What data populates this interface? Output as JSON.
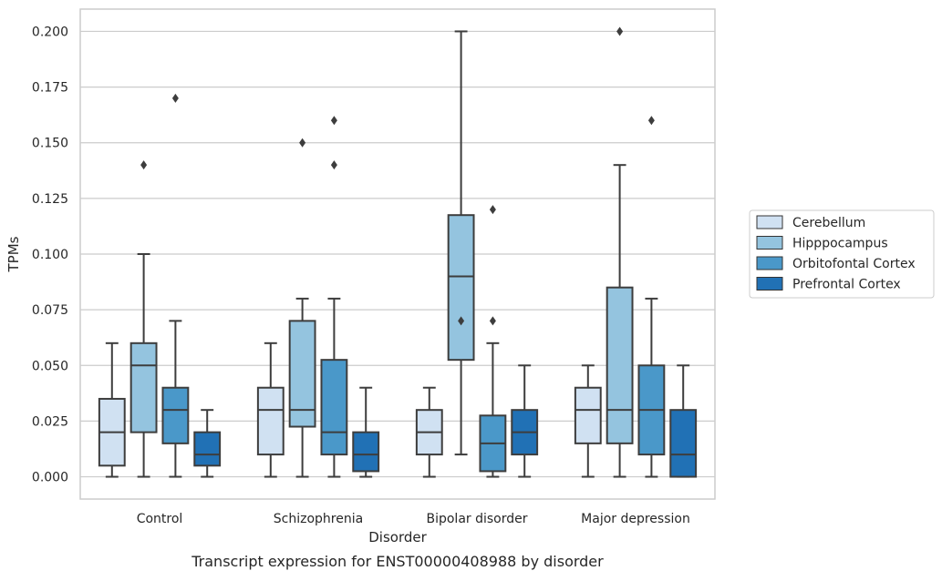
{
  "chart_data": {
    "type": "boxplot",
    "title": "",
    "caption": "Transcript expression for ENST00000408988 by disorder",
    "xlabel": "Disorder",
    "ylabel": "TPMs",
    "ylim": [
      -0.01,
      0.21
    ],
    "yticks": [
      "0.000",
      "0.025",
      "0.050",
      "0.075",
      "0.100",
      "0.125",
      "0.150",
      "0.175",
      "0.200"
    ],
    "ytick_values": [
      0,
      0.025,
      0.05,
      0.075,
      0.1,
      0.125,
      0.15,
      0.175,
      0.2
    ],
    "grid": true,
    "legend_position": "right",
    "categories": [
      "Control",
      "Schizophrenia",
      "Bipolar disorder",
      "Major depression"
    ],
    "series": [
      {
        "name": "Cerebellum",
        "color": "#d0e1f2",
        "boxes": [
          {
            "whisker_low": 0,
            "q1": 0.005,
            "median": 0.02,
            "q3": 0.035,
            "whisker_high": 0.06,
            "outliers": []
          },
          {
            "whisker_low": 0,
            "q1": 0.01,
            "median": 0.03,
            "q3": 0.04,
            "whisker_high": 0.06,
            "outliers": []
          },
          {
            "whisker_low": 0,
            "q1": 0.01,
            "median": 0.02,
            "q3": 0.03,
            "whisker_high": 0.04,
            "outliers": []
          },
          {
            "whisker_low": 0,
            "q1": 0.015,
            "median": 0.03,
            "q3": 0.04,
            "whisker_high": 0.05,
            "outliers": []
          }
        ]
      },
      {
        "name": "Hipppocampus",
        "color": "#94c4df",
        "boxes": [
          {
            "whisker_low": 0,
            "q1": 0.02,
            "median": 0.05,
            "q3": 0.06,
            "whisker_high": 0.1,
            "outliers": [
              0.14
            ]
          },
          {
            "whisker_low": 0,
            "q1": 0.0225,
            "median": 0.03,
            "q3": 0.07,
            "whisker_high": 0.08,
            "outliers": [
              0.15
            ]
          },
          {
            "whisker_low": 0.01,
            "q1": 0.0525,
            "median": 0.09,
            "q3": 0.1175,
            "whisker_high": 0.2,
            "outliers": [
              0.07
            ]
          },
          {
            "whisker_low": 0,
            "q1": 0.015,
            "median": 0.03,
            "q3": 0.085,
            "whisker_high": 0.14,
            "outliers": [
              0.2
            ]
          }
        ]
      },
      {
        "name": "Orbitofontal Cortex",
        "color": "#4a98c9",
        "boxes": [
          {
            "whisker_low": 0,
            "q1": 0.015,
            "median": 0.03,
            "q3": 0.04,
            "whisker_high": 0.07,
            "outliers": [
              0.17
            ]
          },
          {
            "whisker_low": 0,
            "q1": 0.01,
            "median": 0.02,
            "q3": 0.0525,
            "whisker_high": 0.08,
            "outliers": [
              0.14,
              0.16
            ]
          },
          {
            "whisker_low": 0,
            "q1": 0.0025,
            "median": 0.015,
            "q3": 0.0275,
            "whisker_high": 0.06,
            "outliers": [
              0.07,
              0.12
            ]
          },
          {
            "whisker_low": 0,
            "q1": 0.01,
            "median": 0.03,
            "q3": 0.05,
            "whisker_high": 0.08,
            "outliers": [
              0.16
            ]
          }
        ]
      },
      {
        "name": "Prefrontal Cortex",
        "color": "#2171b5",
        "boxes": [
          {
            "whisker_low": 0,
            "q1": 0.005,
            "median": 0.01,
            "q3": 0.02,
            "whisker_high": 0.03,
            "outliers": []
          },
          {
            "whisker_low": 0,
            "q1": 0.0025,
            "median": 0.01,
            "q3": 0.02,
            "whisker_high": 0.04,
            "outliers": []
          },
          {
            "whisker_low": 0,
            "q1": 0.01,
            "median": 0.02,
            "q3": 0.03,
            "whisker_high": 0.05,
            "outliers": []
          },
          {
            "whisker_low": 0,
            "q1": 0,
            "median": 0.01,
            "q3": 0.03,
            "whisker_high": 0.05,
            "outliers": []
          }
        ]
      }
    ]
  }
}
